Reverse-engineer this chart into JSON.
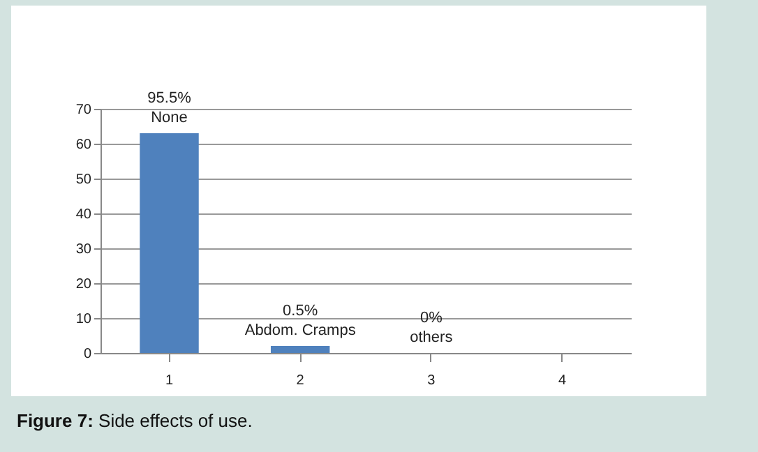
{
  "chart_data": {
    "type": "bar",
    "title": "Figure 7: Side effects of use.",
    "categories": [
      "1",
      "2",
      "3",
      "4"
    ],
    "values": [
      63,
      2,
      0,
      null
    ],
    "color": "#4f81bd",
    "ylim": [
      0,
      70
    ],
    "yticks": [
      0,
      10,
      20,
      30,
      40,
      50,
      60,
      70
    ],
    "grid": "y",
    "annotations": [
      {
        "text": "95.5%",
        "x": "1",
        "y": 63
      },
      {
        "text": "None",
        "x": "1",
        "y": 63
      },
      {
        "text": "0.5%",
        "x": "2",
        "y": 2
      },
      {
        "text": "Abdom. Cramps",
        "x": "2",
        "y": 2
      },
      {
        "text": "0%",
        "x": "3",
        "y": 0
      },
      {
        "text": "others",
        "x": "3",
        "y": 0
      }
    ]
  }
}
